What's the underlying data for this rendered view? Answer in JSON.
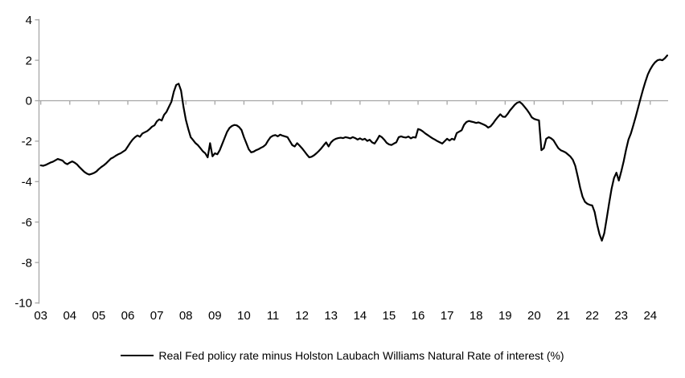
{
  "chart_data": {
    "type": "line",
    "title": "",
    "xlabel": "",
    "ylabel": "",
    "frequency": "monthly",
    "x_start": "2003-01",
    "x_end": "2024-08",
    "ylim": [
      -10,
      4
    ],
    "grid": "zero-line-only",
    "legend_position": "bottom-center",
    "axis_color": "#A6A6A6",
    "label_color": "#000000",
    "background_color": "#FFFFFF",
    "y_ticks": [
      4,
      2,
      0,
      -2,
      -4,
      -6,
      -8,
      -10
    ],
    "y_tick_labels": [
      "4",
      "2",
      "0",
      "-2",
      "-4",
      "-6",
      "-8",
      "-10"
    ],
    "x_tick_labels": [
      "03",
      "04",
      "05",
      "06",
      "07",
      "08",
      "09",
      "10",
      "11",
      "12",
      "13",
      "14",
      "15",
      "16",
      "17",
      "18",
      "19",
      "20",
      "21",
      "22",
      "23",
      "24"
    ],
    "series": [
      {
        "name": "Real Fed policy rate minus Holston Laubach Williams Natural Rate of interest (%)",
        "color": "#000000",
        "values": [
          -3.2,
          -3.22,
          -3.18,
          -3.12,
          -3.06,
          -3.02,
          -2.95,
          -2.88,
          -2.92,
          -2.96,
          -3.08,
          -3.14,
          -3.06,
          -3.0,
          -3.06,
          -3.15,
          -3.28,
          -3.4,
          -3.52,
          -3.6,
          -3.65,
          -3.62,
          -3.57,
          -3.5,
          -3.38,
          -3.28,
          -3.2,
          -3.1,
          -2.98,
          -2.86,
          -2.8,
          -2.72,
          -2.65,
          -2.6,
          -2.52,
          -2.44,
          -2.26,
          -2.08,
          -1.92,
          -1.8,
          -1.72,
          -1.78,
          -1.62,
          -1.56,
          -1.5,
          -1.4,
          -1.28,
          -1.22,
          -1.02,
          -0.92,
          -0.98,
          -0.7,
          -0.55,
          -0.3,
          -0.05,
          0.45,
          0.78,
          0.84,
          0.5,
          -0.3,
          -0.95,
          -1.4,
          -1.8,
          -1.95,
          -2.1,
          -2.2,
          -2.35,
          -2.5,
          -2.6,
          -2.8,
          -2.1,
          -2.75,
          -2.6,
          -2.65,
          -2.45,
          -2.15,
          -1.85,
          -1.55,
          -1.35,
          -1.25,
          -1.2,
          -1.22,
          -1.3,
          -1.45,
          -1.8,
          -2.1,
          -2.4,
          -2.55,
          -2.52,
          -2.45,
          -2.4,
          -2.33,
          -2.27,
          -2.17,
          -1.97,
          -1.8,
          -1.73,
          -1.7,
          -1.76,
          -1.68,
          -1.73,
          -1.76,
          -1.8,
          -2.0,
          -2.2,
          -2.26,
          -2.1,
          -2.22,
          -2.35,
          -2.5,
          -2.66,
          -2.8,
          -2.77,
          -2.7,
          -2.6,
          -2.48,
          -2.35,
          -2.2,
          -2.06,
          -2.26,
          -2.06,
          -1.95,
          -1.88,
          -1.85,
          -1.83,
          -1.85,
          -1.8,
          -1.83,
          -1.86,
          -1.8,
          -1.85,
          -1.92,
          -1.86,
          -1.93,
          -1.88,
          -1.99,
          -1.93,
          -2.06,
          -2.12,
          -1.94,
          -1.73,
          -1.8,
          -1.93,
          -2.08,
          -2.16,
          -2.19,
          -2.12,
          -2.06,
          -1.8,
          -1.76,
          -1.8,
          -1.82,
          -1.77,
          -1.86,
          -1.8,
          -1.82,
          -1.4,
          -1.44,
          -1.52,
          -1.62,
          -1.7,
          -1.78,
          -1.86,
          -1.93,
          -2.0,
          -2.06,
          -2.12,
          -2.0,
          -1.88,
          -1.97,
          -1.88,
          -1.93,
          -1.6,
          -1.53,
          -1.46,
          -1.19,
          -1.05,
          -1.0,
          -1.03,
          -1.06,
          -1.1,
          -1.07,
          -1.12,
          -1.17,
          -1.23,
          -1.33,
          -1.26,
          -1.12,
          -0.95,
          -0.8,
          -0.67,
          -0.79,
          -0.8,
          -0.66,
          -0.48,
          -0.34,
          -0.2,
          -0.1,
          -0.06,
          -0.16,
          -0.3,
          -0.45,
          -0.62,
          -0.82,
          -0.9,
          -0.94,
          -0.97,
          -2.45,
          -2.35,
          -1.88,
          -1.8,
          -1.86,
          -1.96,
          -2.16,
          -2.35,
          -2.45,
          -2.5,
          -2.56,
          -2.66,
          -2.76,
          -2.92,
          -3.22,
          -3.75,
          -4.3,
          -4.75,
          -5.0,
          -5.1,
          -5.15,
          -5.18,
          -5.5,
          -6.1,
          -6.6,
          -6.92,
          -6.55,
          -5.8,
          -5.05,
          -4.35,
          -3.82,
          -3.56,
          -3.95,
          -3.5,
          -3.0,
          -2.42,
          -1.92,
          -1.62,
          -1.22,
          -0.78,
          -0.33,
          0.12,
          0.55,
          0.95,
          1.3,
          1.55,
          1.75,
          1.9,
          2.0,
          2.03,
          2.0,
          2.1,
          2.24
        ]
      }
    ]
  }
}
